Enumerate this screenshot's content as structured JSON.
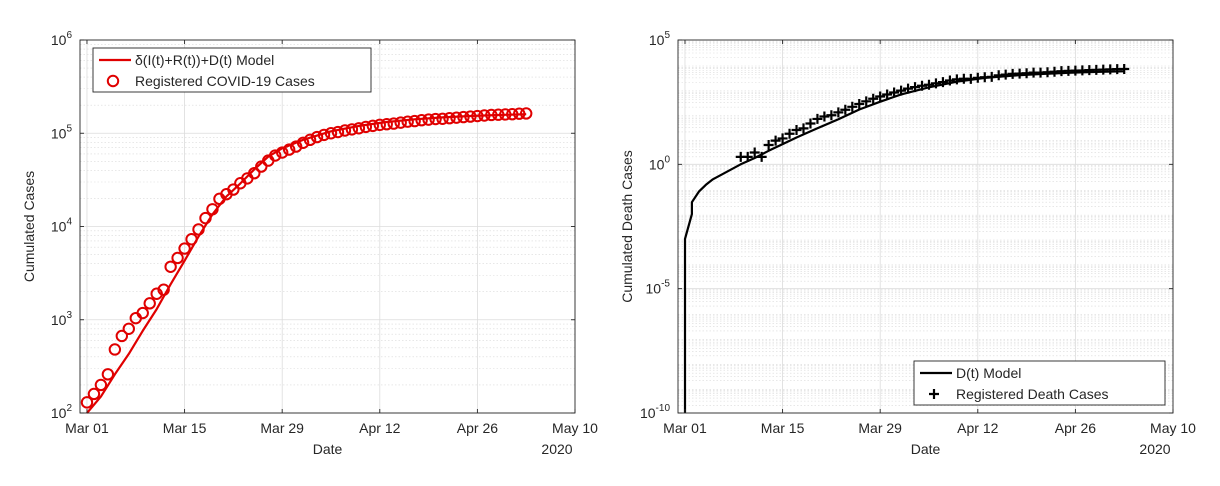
{
  "chart_data": [
    {
      "type": "line",
      "xlabel": "Date",
      "ylabel": "Cumulated Cases",
      "x_year_label": "2020",
      "yscale": "log",
      "xlim": [
        "2020-02-29",
        "2020-05-10"
      ],
      "ylim": [
        100,
        1000000
      ],
      "x_ticks": [
        {
          "date": "2020-03-01",
          "label": "Mar 01"
        },
        {
          "date": "2020-03-15",
          "label": "Mar 15"
        },
        {
          "date": "2020-03-29",
          "label": "Mar 29"
        },
        {
          "date": "2020-04-12",
          "label": "Apr 12"
        },
        {
          "date": "2020-04-26",
          "label": "Apr 26"
        },
        {
          "date": "2020-05-10",
          "label": "May 10"
        }
      ],
      "y_ticks": [
        {
          "value": 100,
          "base": "10",
          "exp": "2"
        },
        {
          "value": 1000,
          "base": "10",
          "exp": "3"
        },
        {
          "value": 10000,
          "base": "10",
          "exp": "4"
        },
        {
          "value": 100000,
          "base": "10",
          "exp": "5"
        },
        {
          "value": 1000000,
          "base": "10",
          "exp": "6"
        }
      ],
      "grid": true,
      "minor_grid": true,
      "legend_position": "top-left",
      "series": [
        {
          "name": "δ(I(t)+R(t))+D(t) Model",
          "style": "line",
          "color": "#e00000",
          "x": [
            "2020-03-01",
            "2020-03-03",
            "2020-03-05",
            "2020-03-07",
            "2020-03-09",
            "2020-03-11",
            "2020-03-13",
            "2020-03-15",
            "2020-03-17",
            "2020-03-19",
            "2020-03-21",
            "2020-03-23",
            "2020-03-25",
            "2020-03-27",
            "2020-03-29",
            "2020-04-01",
            "2020-04-05",
            "2020-04-09",
            "2020-04-13",
            "2020-04-17",
            "2020-04-21",
            "2020-04-25",
            "2020-04-29",
            "2020-05-03"
          ],
          "y": [
            100,
            150,
            260,
            430,
            760,
            1300,
            2400,
            4300,
            7800,
            13500,
            21000,
            29000,
            41000,
            56000,
            69000,
            85000,
            105000,
            120000,
            132000,
            141000,
            148000,
            153000,
            157000,
            160000
          ]
        },
        {
          "name": "Registered COVID-19 Cases",
          "style": "markers",
          "marker": "circle",
          "color": "#e00000",
          "x": [
            "2020-03-01",
            "2020-03-02",
            "2020-03-03",
            "2020-03-04",
            "2020-03-05",
            "2020-03-06",
            "2020-03-07",
            "2020-03-08",
            "2020-03-09",
            "2020-03-10",
            "2020-03-11",
            "2020-03-12",
            "2020-03-13",
            "2020-03-14",
            "2020-03-15",
            "2020-03-16",
            "2020-03-17",
            "2020-03-18",
            "2020-03-19",
            "2020-03-20",
            "2020-03-21",
            "2020-03-22",
            "2020-03-23",
            "2020-03-24",
            "2020-03-25",
            "2020-03-26",
            "2020-03-27",
            "2020-03-28",
            "2020-03-29",
            "2020-03-30",
            "2020-03-31",
            "2020-04-01",
            "2020-04-02",
            "2020-04-03",
            "2020-04-04",
            "2020-04-05",
            "2020-04-06",
            "2020-04-07",
            "2020-04-08",
            "2020-04-09",
            "2020-04-10",
            "2020-04-11",
            "2020-04-12",
            "2020-04-13",
            "2020-04-14",
            "2020-04-15",
            "2020-04-16",
            "2020-04-17",
            "2020-04-18",
            "2020-04-19",
            "2020-04-20",
            "2020-04-21",
            "2020-04-22",
            "2020-04-23",
            "2020-04-24",
            "2020-04-25",
            "2020-04-26",
            "2020-04-27",
            "2020-04-28",
            "2020-04-29",
            "2020-04-30",
            "2020-05-01",
            "2020-05-02",
            "2020-05-03"
          ],
          "y": [
            130,
            160,
            200,
            260,
            480,
            670,
            800,
            1040,
            1180,
            1500,
            1900,
            2100,
            3700,
            4600,
            5800,
            7300,
            9300,
            12300,
            15300,
            19800,
            22200,
            24900,
            29100,
            32800,
            37300,
            43900,
            50900,
            57700,
            62100,
            66800,
            72000,
            79000,
            85000,
            91000,
            96000,
            100000,
            103000,
            107000,
            110000,
            113000,
            117000,
            120000,
            123000,
            125000,
            127000,
            130000,
            133000,
            135000,
            138000,
            140000,
            142000,
            143000,
            145000,
            147000,
            149000,
            151000,
            153000,
            155000,
            157000,
            158000,
            159000,
            160000,
            162000,
            163000
          ]
        }
      ]
    },
    {
      "type": "line",
      "xlabel": "Date",
      "ylabel": "Cumulated Death Cases",
      "x_year_label": "2020",
      "yscale": "log",
      "xlim": [
        "2020-02-29",
        "2020-05-10"
      ],
      "ylim": [
        1e-10,
        100000
      ],
      "x_ticks": [
        {
          "date": "2020-03-01",
          "label": "Mar 01"
        },
        {
          "date": "2020-03-15",
          "label": "Mar 15"
        },
        {
          "date": "2020-03-29",
          "label": "Mar 29"
        },
        {
          "date": "2020-04-12",
          "label": "Apr 12"
        },
        {
          "date": "2020-04-26",
          "label": "Apr 26"
        },
        {
          "date": "2020-05-10",
          "label": "May 10"
        }
      ],
      "y_ticks": [
        {
          "value": 1e-10,
          "base": "10",
          "exp": "-10"
        },
        {
          "value": 1e-05,
          "base": "10",
          "exp": "-5"
        },
        {
          "value": 1,
          "base": "10",
          "exp": "0"
        },
        {
          "value": 100000,
          "base": "10",
          "exp": "5"
        }
      ],
      "grid": true,
      "minor_grid": true,
      "legend_position": "bottom-right",
      "series": [
        {
          "name": "D(t) Model",
          "style": "line",
          "color": "#000000",
          "x": [
            "2020-03-01",
            "2020-03-01",
            "2020-03-01",
            "2020-03-02",
            "2020-03-02",
            "2020-03-03",
            "2020-03-04",
            "2020-03-05",
            "2020-03-07",
            "2020-03-09",
            "2020-03-11",
            "2020-03-13",
            "2020-03-15",
            "2020-03-17",
            "2020-03-20",
            "2020-03-23",
            "2020-03-26",
            "2020-03-29",
            "2020-04-01",
            "2020-04-05",
            "2020-04-09",
            "2020-04-13",
            "2020-04-17",
            "2020-04-21",
            "2020-04-25",
            "2020-04-29",
            "2020-05-03"
          ],
          "y": [
            1e-10,
            1e-06,
            0.001,
            0.01,
            0.03,
            0.08,
            0.15,
            0.25,
            0.5,
            1.0,
            1.8,
            3.5,
            6.5,
            12,
            28,
            65,
            160,
            330,
            650,
            1250,
            2100,
            3000,
            3700,
            4300,
            4800,
            5200,
            5500
          ]
        },
        {
          "name": "Registered Death Cases",
          "style": "markers",
          "marker": "plus",
          "color": "#000000",
          "x": [
            "2020-03-09",
            "2020-03-10",
            "2020-03-11",
            "2020-03-12",
            "2020-03-13",
            "2020-03-14",
            "2020-03-15",
            "2020-03-16",
            "2020-03-17",
            "2020-03-18",
            "2020-03-19",
            "2020-03-20",
            "2020-03-21",
            "2020-03-22",
            "2020-03-23",
            "2020-03-24",
            "2020-03-25",
            "2020-03-26",
            "2020-03-27",
            "2020-03-28",
            "2020-03-29",
            "2020-03-30",
            "2020-03-31",
            "2020-04-01",
            "2020-04-02",
            "2020-04-03",
            "2020-04-04",
            "2020-04-05",
            "2020-04-06",
            "2020-04-07",
            "2020-04-08",
            "2020-04-09",
            "2020-04-10",
            "2020-04-11",
            "2020-04-12",
            "2020-04-13",
            "2020-04-14",
            "2020-04-15",
            "2020-04-16",
            "2020-04-17",
            "2020-04-18",
            "2020-04-19",
            "2020-04-20",
            "2020-04-21",
            "2020-04-22",
            "2020-04-23",
            "2020-04-24",
            "2020-04-25",
            "2020-04-26",
            "2020-04-27",
            "2020-04-28",
            "2020-04-29",
            "2020-04-30",
            "2020-05-01",
            "2020-05-02",
            "2020-05-03"
          ],
          "y": [
            2,
            2,
            3,
            2,
            6,
            9,
            11,
            17,
            24,
            28,
            44,
            67,
            84,
            94,
            123,
            157,
            206,
            267,
            342,
            433,
            533,
            645,
            775,
            920,
            1107,
            1275,
            1444,
            1584,
            1810,
            2016,
            2349,
            2607,
            2767,
            2736,
            3022,
            3194,
            3294,
            3804,
            4052,
            4352,
            4459,
            4586,
            4862,
            4862,
            5033,
            5279,
            5575,
            5760,
            5877,
            5976,
            6126,
            6314,
            6467,
            6623,
            6736,
            6812
          ]
        }
      ]
    }
  ]
}
